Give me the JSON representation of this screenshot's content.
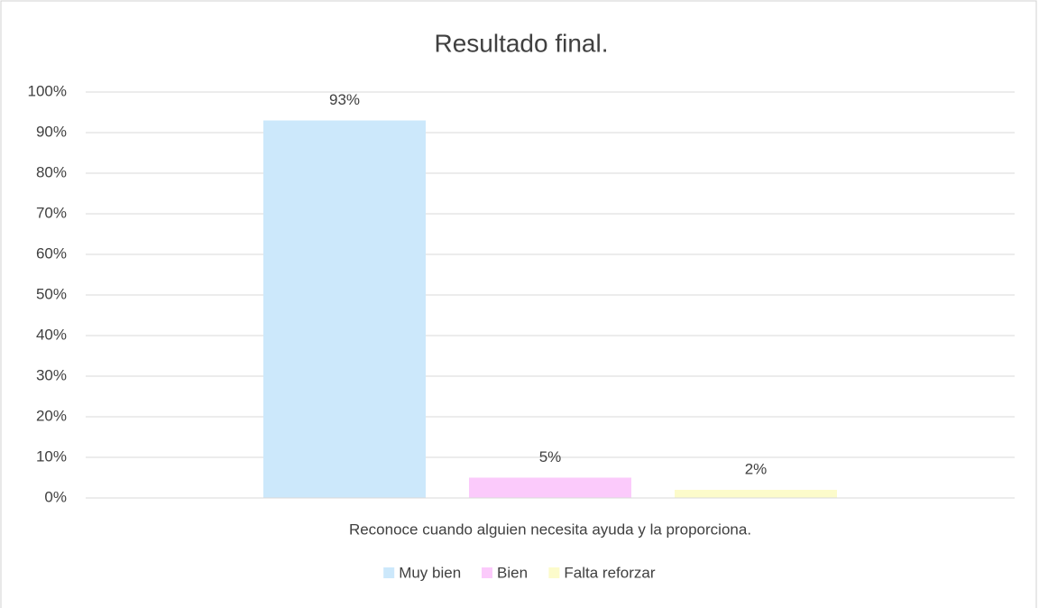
{
  "chart_data": {
    "type": "bar",
    "title": "Resultado final.",
    "categories": [
      "Reconoce cuando alguien necesita ayuda y la proporciona."
    ],
    "series": [
      {
        "name": "Muy bien",
        "color": "#cce8fb",
        "values": [
          93
        ],
        "value_labels": [
          "93%"
        ]
      },
      {
        "name": "Bien",
        "color": "#fbcafb",
        "values": [
          5
        ],
        "value_labels": [
          "5%"
        ]
      },
      {
        "name": "Falta reforzar",
        "color": "#fcfbcb",
        "values": [
          2
        ],
        "value_labels": [
          "2%"
        ]
      }
    ],
    "ylim": [
      0,
      100
    ],
    "yticks": [
      {
        "value": 0,
        "label": "0%"
      },
      {
        "value": 10,
        "label": "10%"
      },
      {
        "value": 20,
        "label": "20%"
      },
      {
        "value": 30,
        "label": "30%"
      },
      {
        "value": 40,
        "label": "40%"
      },
      {
        "value": 50,
        "label": "50%"
      },
      {
        "value": 60,
        "label": "60%"
      },
      {
        "value": 70,
        "label": "70%"
      },
      {
        "value": 80,
        "label": "80%"
      },
      {
        "value": 90,
        "label": "90%"
      },
      {
        "value": 100,
        "label": "100%"
      }
    ],
    "grid": true,
    "legend": "bottom"
  }
}
